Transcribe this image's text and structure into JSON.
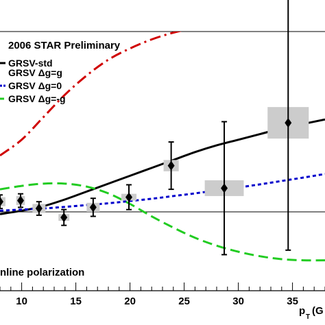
{
  "chart_data": {
    "type": "line",
    "title": "2006 STAR Preliminary",
    "annotation": "nline polarization",
    "xlabel_main": "p",
    "xlabel_sub": "T",
    "xlabel_unit": "(G",
    "xlim": [
      8,
      38
    ],
    "ylim": [
      -0.035,
      0.08
    ],
    "x_ticks": [
      10,
      15,
      20,
      25,
      30,
      35
    ],
    "x_tick_labels": [
      "10",
      "15",
      "20",
      "25",
      "30",
      "35"
    ],
    "grid": false,
    "legend_position": "top-left",
    "zero_line": 0,
    "series": [
      {
        "name": "GRSV-std",
        "style": "solid",
        "color": "#000000",
        "x": [
          8,
          10,
          12,
          14,
          16,
          18,
          20,
          22,
          24,
          26,
          28,
          30,
          32,
          34,
          36,
          38
        ],
        "y": [
          -0.001,
          0.0005,
          0.0025,
          0.0055,
          0.009,
          0.0125,
          0.016,
          0.0195,
          0.023,
          0.0265,
          0.0295,
          0.032,
          0.0345,
          0.037,
          0.039,
          0.041
        ]
      },
      {
        "name": "GRSV Δg=g",
        "style": "dash-dot",
        "color": "#d00000",
        "x": [
          8,
          10,
          12,
          14,
          16,
          18,
          20,
          22,
          24,
          26,
          28,
          30,
          32,
          34,
          36,
          38
        ],
        "y": [
          0.025,
          0.032,
          0.042,
          0.052,
          0.0605,
          0.0675,
          0.0725,
          0.0765,
          0.0795,
          0.0815,
          0.0825,
          0.083,
          0.0832,
          0.083,
          0.0825,
          0.0818
        ]
      },
      {
        "name": "GRSV Δg=0",
        "style": "dotted",
        "color": "#0000cc",
        "x": [
          8,
          10,
          12,
          14,
          16,
          18,
          20,
          22,
          24,
          26,
          28,
          30,
          32,
          34,
          36,
          38
        ],
        "y": [
          0.0005,
          0.001,
          0.0015,
          0.0022,
          0.003,
          0.0038,
          0.0048,
          0.0058,
          0.007,
          0.0082,
          0.0095,
          0.0108,
          0.0122,
          0.0137,
          0.0152,
          0.0168
        ]
      },
      {
        "name": "GRSV Δg=-g",
        "style": "dashed",
        "color": "#22cc22",
        "x": [
          8,
          10,
          12,
          14,
          16,
          18,
          20,
          22,
          24,
          26,
          28,
          30,
          32,
          34,
          36,
          38
        ],
        "y": [
          0.01,
          0.0115,
          0.0125,
          0.0125,
          0.0112,
          0.0082,
          0.0035,
          -0.002,
          -0.007,
          -0.0115,
          -0.015,
          -0.0177,
          -0.0197,
          -0.021,
          -0.0215,
          -0.0215
        ]
      }
    ],
    "points": {
      "x": [
        8.0,
        9.9,
        11.6,
        13.9,
        16.6,
        19.9,
        23.8,
        28.7,
        34.6
      ],
      "y": [
        0.0045,
        0.005,
        0.0015,
        -0.0025,
        0.002,
        0.0065,
        0.0205,
        0.0105,
        0.0395
      ],
      "yerr": [
        0.003,
        0.003,
        0.003,
        0.0035,
        0.004,
        0.0055,
        0.0105,
        0.0295,
        0.0565
      ],
      "sys_half_width": [
        0.5,
        0.4,
        0.6,
        0.5,
        0.6,
        0.7,
        0.7,
        1.8,
        1.9
      ],
      "sys_half_height": [
        0.002,
        0.002,
        0.002,
        0.0015,
        0.002,
        0.0015,
        0.0025,
        0.0035,
        0.007
      ]
    }
  },
  "colors": {
    "background": "#ffffff",
    "axis": "#000000",
    "sys_box": "#cccccc",
    "data_marker": "#000000"
  }
}
